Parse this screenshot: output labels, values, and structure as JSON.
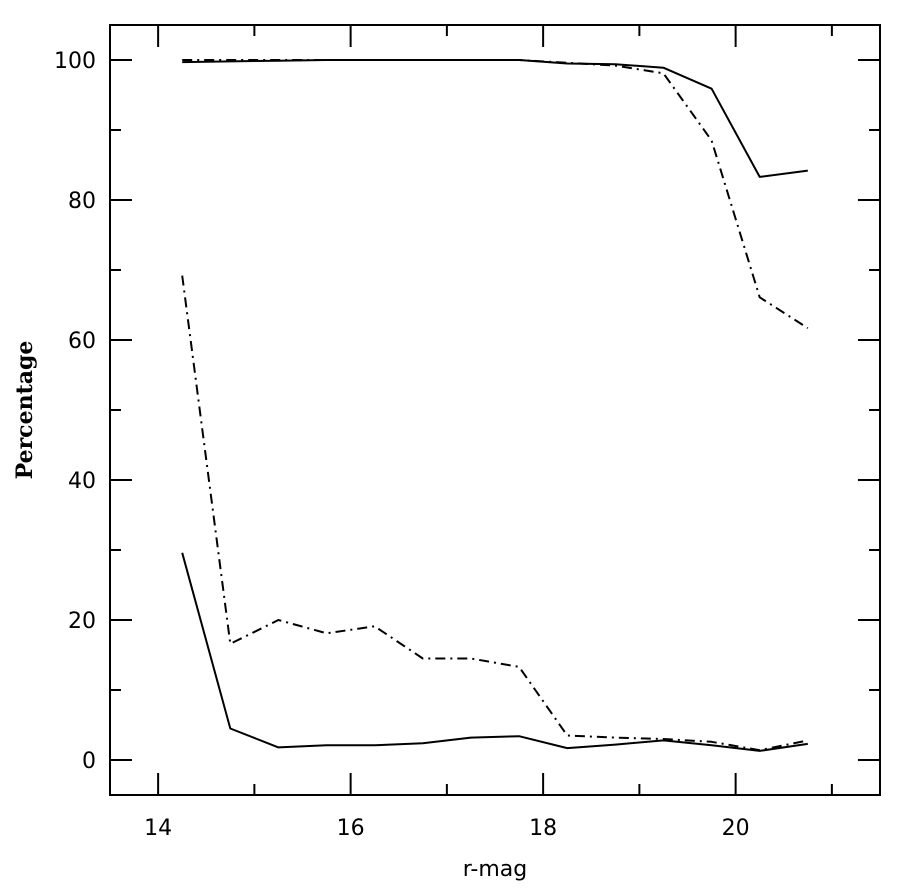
{
  "chart_data": {
    "type": "line",
    "title": "",
    "xlabel": "r-mag",
    "ylabel": "Percentage",
    "xlim": [
      13.5,
      21.5
    ],
    "ylim": [
      -5,
      105
    ],
    "xticks": [
      14,
      16,
      18,
      20
    ],
    "yticks": [
      0,
      20,
      40,
      60,
      80,
      100
    ],
    "xminor": [
      15,
      17,
      19,
      21
    ],
    "yminor": [
      10,
      30,
      50,
      70,
      90
    ],
    "grid": false,
    "legend": "none",
    "series": [
      {
        "style": "solid",
        "x": [
          14.25,
          14.75,
          15.25,
          15.75,
          16.25,
          16.75,
          17.25,
          17.75,
          18.25,
          18.75,
          19.25,
          19.75,
          20.25,
          20.75
        ],
        "y": [
          99.7,
          99.8,
          99.9,
          100.0,
          100.0,
          100.0,
          100.0,
          100.0,
          99.5,
          99.4,
          98.9,
          95.9,
          83.3,
          84.2
        ]
      },
      {
        "style": "dashdot",
        "x": [
          14.25,
          14.75,
          15.25,
          15.75,
          16.25,
          16.75,
          17.25,
          17.75,
          18.25,
          18.75,
          19.25,
          19.75,
          20.25,
          20.75
        ],
        "y": [
          100.0,
          100.0,
          100.0,
          100.0,
          100.0,
          100.0,
          100.0,
          100.0,
          99.6,
          99.2,
          98.1,
          88.5,
          66.1,
          61.7
        ]
      },
      {
        "style": "solid",
        "x": [
          14.25,
          14.75,
          15.25,
          15.75,
          16.25,
          16.75,
          17.25,
          17.75,
          18.25,
          18.75,
          19.25,
          19.75,
          20.25,
          20.75
        ],
        "y": [
          29.6,
          4.5,
          1.8,
          2.1,
          2.1,
          2.4,
          3.2,
          3.4,
          1.7,
          2.2,
          2.8,
          2.1,
          1.3,
          2.3
        ]
      },
      {
        "style": "dashdot",
        "x": [
          14.25,
          14.75,
          15.25,
          15.75,
          16.25,
          16.75,
          17.25,
          17.75,
          18.25,
          18.75,
          19.25,
          19.75,
          20.25,
          20.75
        ],
        "y": [
          69.2,
          16.6,
          20.0,
          18.1,
          19.1,
          14.5,
          14.5,
          13.3,
          3.5,
          3.2,
          3.0,
          2.6,
          1.4,
          2.8
        ]
      }
    ]
  }
}
